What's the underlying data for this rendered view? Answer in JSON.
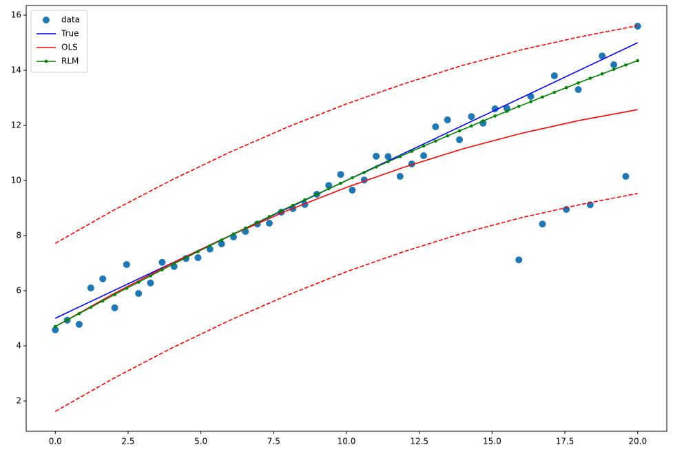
{
  "chart_data": {
    "type": "line",
    "xlim": [
      -1,
      21
    ],
    "ylim": [
      0.9,
      16.35
    ],
    "xticks": [
      {
        "value": 0,
        "label": "0.0"
      },
      {
        "value": 2.5,
        "label": "2.5"
      },
      {
        "value": 5,
        "label": "5.0"
      },
      {
        "value": 7.5,
        "label": "7.5"
      },
      {
        "value": 10,
        "label": "10.0"
      },
      {
        "value": 12.5,
        "label": "12.5"
      },
      {
        "value": 15,
        "label": "15.0"
      },
      {
        "value": 17.5,
        "label": "17.5"
      },
      {
        "value": 20,
        "label": "20.0"
      }
    ],
    "yticks": [
      2,
      4,
      6,
      8,
      10,
      12,
      14,
      16
    ],
    "legend": "upper left",
    "series": [
      {
        "name": "data",
        "color": "#1f77b4",
        "style": "points",
        "x": [
          0,
          0.41,
          0.82,
          1.22,
          1.63,
          2.04,
          2.45,
          2.86,
          3.27,
          3.67,
          4.08,
          4.49,
          4.9,
          5.31,
          5.71,
          6.12,
          6.53,
          6.94,
          7.35,
          7.76,
          8.16,
          8.57,
          8.98,
          9.39,
          9.8,
          10.2,
          10.61,
          11.02,
          11.43,
          11.84,
          12.24,
          12.65,
          13.06,
          13.47,
          13.88,
          14.29,
          14.69,
          15.1,
          15.51,
          15.92,
          16.33,
          16.73,
          17.14,
          17.55,
          17.96,
          18.37,
          18.78,
          19.18,
          19.59,
          20
        ],
        "values": [
          4.58,
          4.93,
          4.78,
          6.1,
          6.43,
          5.38,
          6.95,
          5.9,
          6.28,
          7.03,
          6.88,
          7.17,
          7.2,
          7.51,
          7.7,
          7.95,
          8.15,
          8.42,
          8.45,
          8.85,
          8.98,
          9.13,
          9.5,
          9.82,
          10.22,
          9.65,
          10.02,
          10.88,
          10.87,
          10.15,
          10.6,
          10.9,
          11.95,
          12.2,
          11.48,
          12.32,
          12.08,
          12.6,
          12.62,
          7.12,
          13.05,
          8.42,
          13.8,
          8.95,
          13.3,
          9.12,
          14.52,
          14.2,
          10.15,
          15.6
        ]
      },
      {
        "name": "True",
        "color": "#0000ff",
        "style": "solid",
        "x": [
          0,
          20
        ],
        "values": [
          5,
          15
        ]
      },
      {
        "name": "OLS",
        "color": "#ff0000",
        "style": "solid",
        "x": [
          0,
          2,
          4,
          6,
          8,
          10,
          12,
          14,
          16,
          18,
          20
        ],
        "values": [
          4.7,
          5.89,
          6.99,
          8.0,
          8.92,
          9.75,
          10.49,
          11.15,
          11.71,
          12.18,
          12.57
        ]
      },
      {
        "name": "RLM",
        "color": "#008000",
        "style": "solid-dots",
        "x": [
          0,
          0.41,
          0.82,
          1.22,
          1.63,
          2.04,
          2.45,
          2.86,
          3.27,
          3.67,
          4.08,
          4.49,
          4.9,
          5.31,
          5.71,
          6.12,
          6.53,
          6.94,
          7.35,
          7.76,
          8.16,
          8.57,
          8.98,
          9.39,
          9.8,
          10.2,
          10.61,
          11.02,
          11.43,
          11.84,
          12.24,
          12.65,
          13.06,
          13.47,
          13.88,
          14.29,
          14.69,
          15.1,
          15.51,
          15.92,
          16.33,
          16.73,
          17.14,
          17.55,
          17.96,
          18.37,
          18.78,
          19.18,
          19.59,
          20
        ],
        "values": [
          4.7,
          4.94,
          5.17,
          5.4,
          5.63,
          5.86,
          6.09,
          6.31,
          6.54,
          6.76,
          6.98,
          7.2,
          7.42,
          7.63,
          7.84,
          8.06,
          8.27,
          8.48,
          8.69,
          8.9,
          9.1,
          9.3,
          9.5,
          9.7,
          9.9,
          10.1,
          10.29,
          10.49,
          10.68,
          10.87,
          11.06,
          11.25,
          11.43,
          11.62,
          11.8,
          11.98,
          12.16,
          12.34,
          12.51,
          12.69,
          12.86,
          13.03,
          13.2,
          13.37,
          13.54,
          13.71,
          13.87,
          14.03,
          14.19,
          14.35
        ]
      },
      {
        "color": "#ff0000",
        "style": "dashed",
        "x": [
          0,
          2,
          4,
          6,
          8,
          10,
          12,
          14,
          16,
          18,
          20
        ],
        "values": [
          7.72,
          8.92,
          10.02,
          11.03,
          11.95,
          12.78,
          13.52,
          14.18,
          14.74,
          15.21,
          15.62
        ]
      },
      {
        "color": "#ff0000",
        "style": "dashed",
        "x": [
          0,
          2,
          4,
          6,
          8,
          10,
          12,
          14,
          16,
          18,
          20
        ],
        "values": [
          1.62,
          2.82,
          3.92,
          4.93,
          5.85,
          6.69,
          7.43,
          8.09,
          8.65,
          9.12,
          9.53
        ]
      }
    ]
  }
}
